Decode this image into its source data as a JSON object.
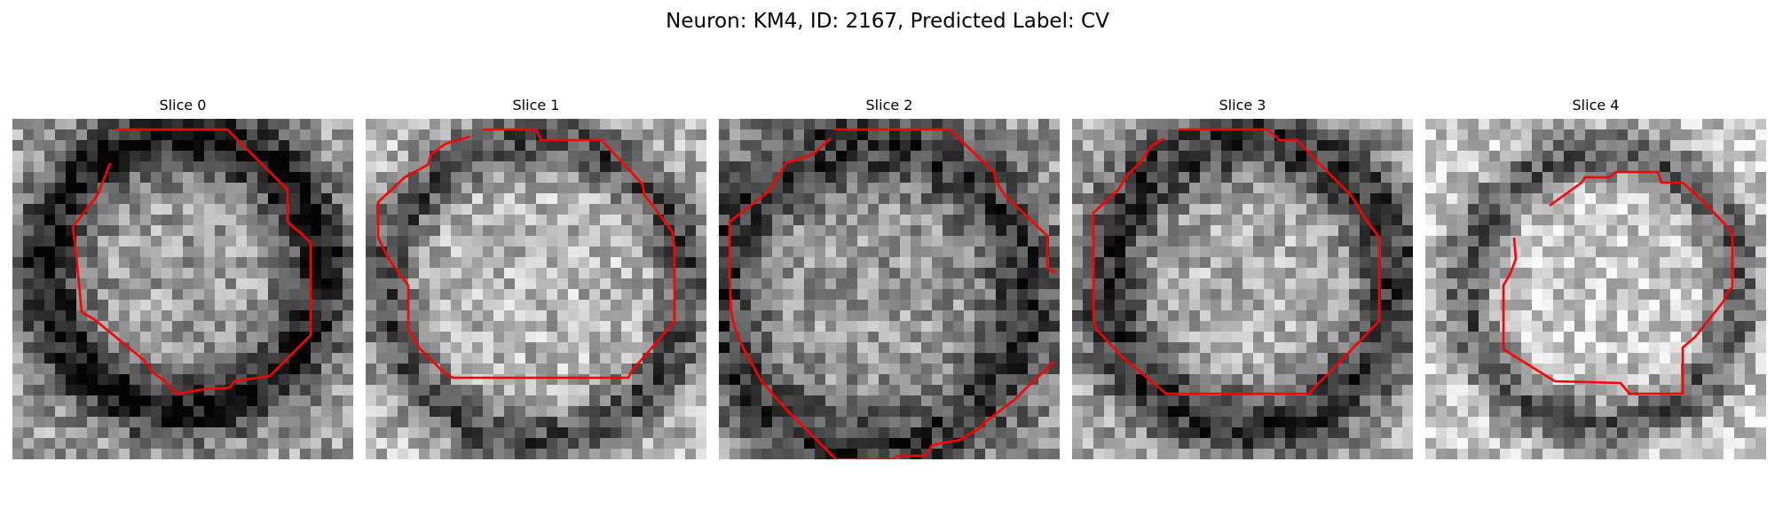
{
  "figure": {
    "title": "Neuron: KM4, ID: 2167, Predicted Label: CV"
  },
  "panels": [
    {
      "title": "Slice 0"
    },
    {
      "title": "Slice 1"
    },
    {
      "title": "Slice 2"
    },
    {
      "title": "Slice 3"
    },
    {
      "title": "Slice 4"
    }
  ],
  "colors": {
    "contour": "#ff0000",
    "colormap": "grayscale"
  }
}
